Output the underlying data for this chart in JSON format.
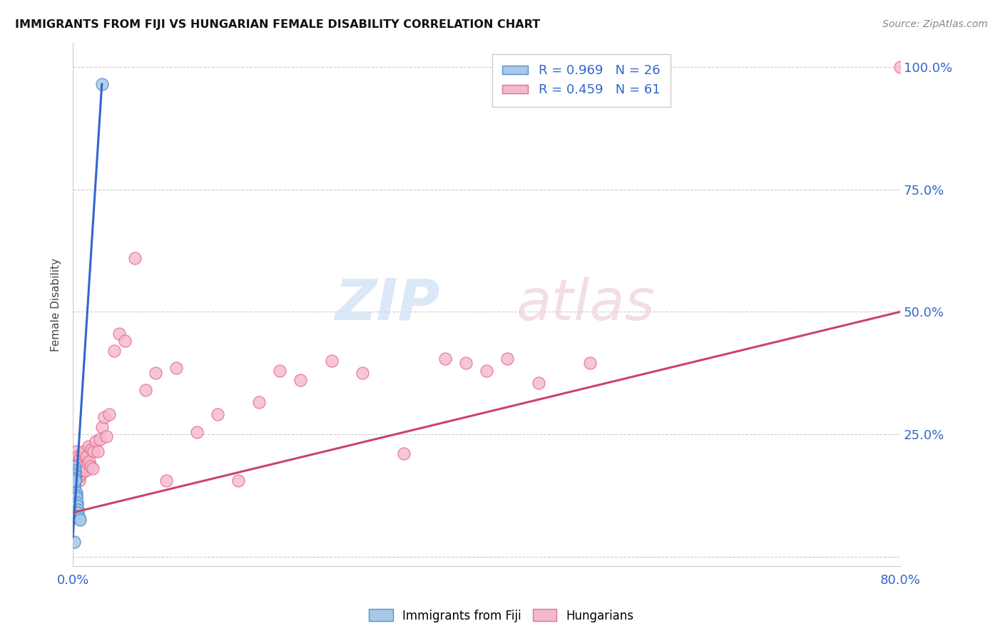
{
  "title": "IMMIGRANTS FROM FIJI VS HUNGARIAN FEMALE DISABILITY CORRELATION CHART",
  "source": "Source: ZipAtlas.com",
  "ylabel": "Female Disability",
  "fiji_color": "#a8c8e8",
  "fiji_edge_color": "#5590cc",
  "hungarian_color": "#f5b8cc",
  "hungarian_edge_color": "#e07090",
  "fiji_line_color": "#3366cc",
  "hungarian_line_color": "#cc4466",
  "fiji_R": "0.969",
  "fiji_N": "26",
  "hungarian_R": "0.459",
  "hungarian_N": "61",
  "fiji_scatter_x": [
    0.001,
    0.001,
    0.001,
    0.001,
    0.001,
    0.001,
    0.001,
    0.001,
    0.001,
    0.001,
    0.002,
    0.002,
    0.002,
    0.002,
    0.002,
    0.003,
    0.003,
    0.003,
    0.004,
    0.004,
    0.005,
    0.005,
    0.006,
    0.007,
    0.028,
    0.001
  ],
  "fiji_scatter_y": [
    0.175,
    0.18,
    0.185,
    0.17,
    0.165,
    0.155,
    0.16,
    0.15,
    0.145,
    0.14,
    0.175,
    0.17,
    0.165,
    0.16,
    0.155,
    0.13,
    0.125,
    0.12,
    0.11,
    0.105,
    0.095,
    0.09,
    0.08,
    0.075,
    0.965,
    0.03
  ],
  "hungarian_scatter_x": [
    0.001,
    0.001,
    0.002,
    0.002,
    0.003,
    0.003,
    0.004,
    0.004,
    0.005,
    0.005,
    0.006,
    0.006,
    0.007,
    0.007,
    0.008,
    0.008,
    0.009,
    0.009,
    0.01,
    0.01,
    0.011,
    0.012,
    0.013,
    0.014,
    0.015,
    0.016,
    0.017,
    0.018,
    0.019,
    0.02,
    0.022,
    0.024,
    0.026,
    0.028,
    0.03,
    0.032,
    0.035,
    0.04,
    0.045,
    0.05,
    0.06,
    0.07,
    0.08,
    0.09,
    0.1,
    0.12,
    0.14,
    0.16,
    0.18,
    0.2,
    0.22,
    0.25,
    0.28,
    0.32,
    0.36,
    0.38,
    0.4,
    0.42,
    0.45,
    0.5,
    0.8
  ],
  "hungarian_scatter_y": [
    0.185,
    0.175,
    0.2,
    0.165,
    0.215,
    0.17,
    0.195,
    0.16,
    0.205,
    0.175,
    0.195,
    0.155,
    0.2,
    0.165,
    0.195,
    0.17,
    0.21,
    0.175,
    0.215,
    0.175,
    0.185,
    0.175,
    0.205,
    0.19,
    0.225,
    0.195,
    0.185,
    0.22,
    0.18,
    0.215,
    0.235,
    0.215,
    0.24,
    0.265,
    0.285,
    0.245,
    0.29,
    0.42,
    0.455,
    0.44,
    0.61,
    0.34,
    0.375,
    0.155,
    0.385,
    0.255,
    0.29,
    0.155,
    0.315,
    0.38,
    0.36,
    0.4,
    0.375,
    0.21,
    0.405,
    0.395,
    0.38,
    0.405,
    0.355,
    0.395,
    1.0
  ],
  "xlim": [
    0.0,
    0.8
  ],
  "ylim": [
    -0.02,
    1.05
  ],
  "fiji_trendline_x": [
    0.0,
    0.028
  ],
  "fiji_trendline_y": [
    0.04,
    0.965
  ],
  "hungarian_trendline_x": [
    0.0,
    0.8
  ],
  "hungarian_trendline_y": [
    0.09,
    0.5
  ]
}
